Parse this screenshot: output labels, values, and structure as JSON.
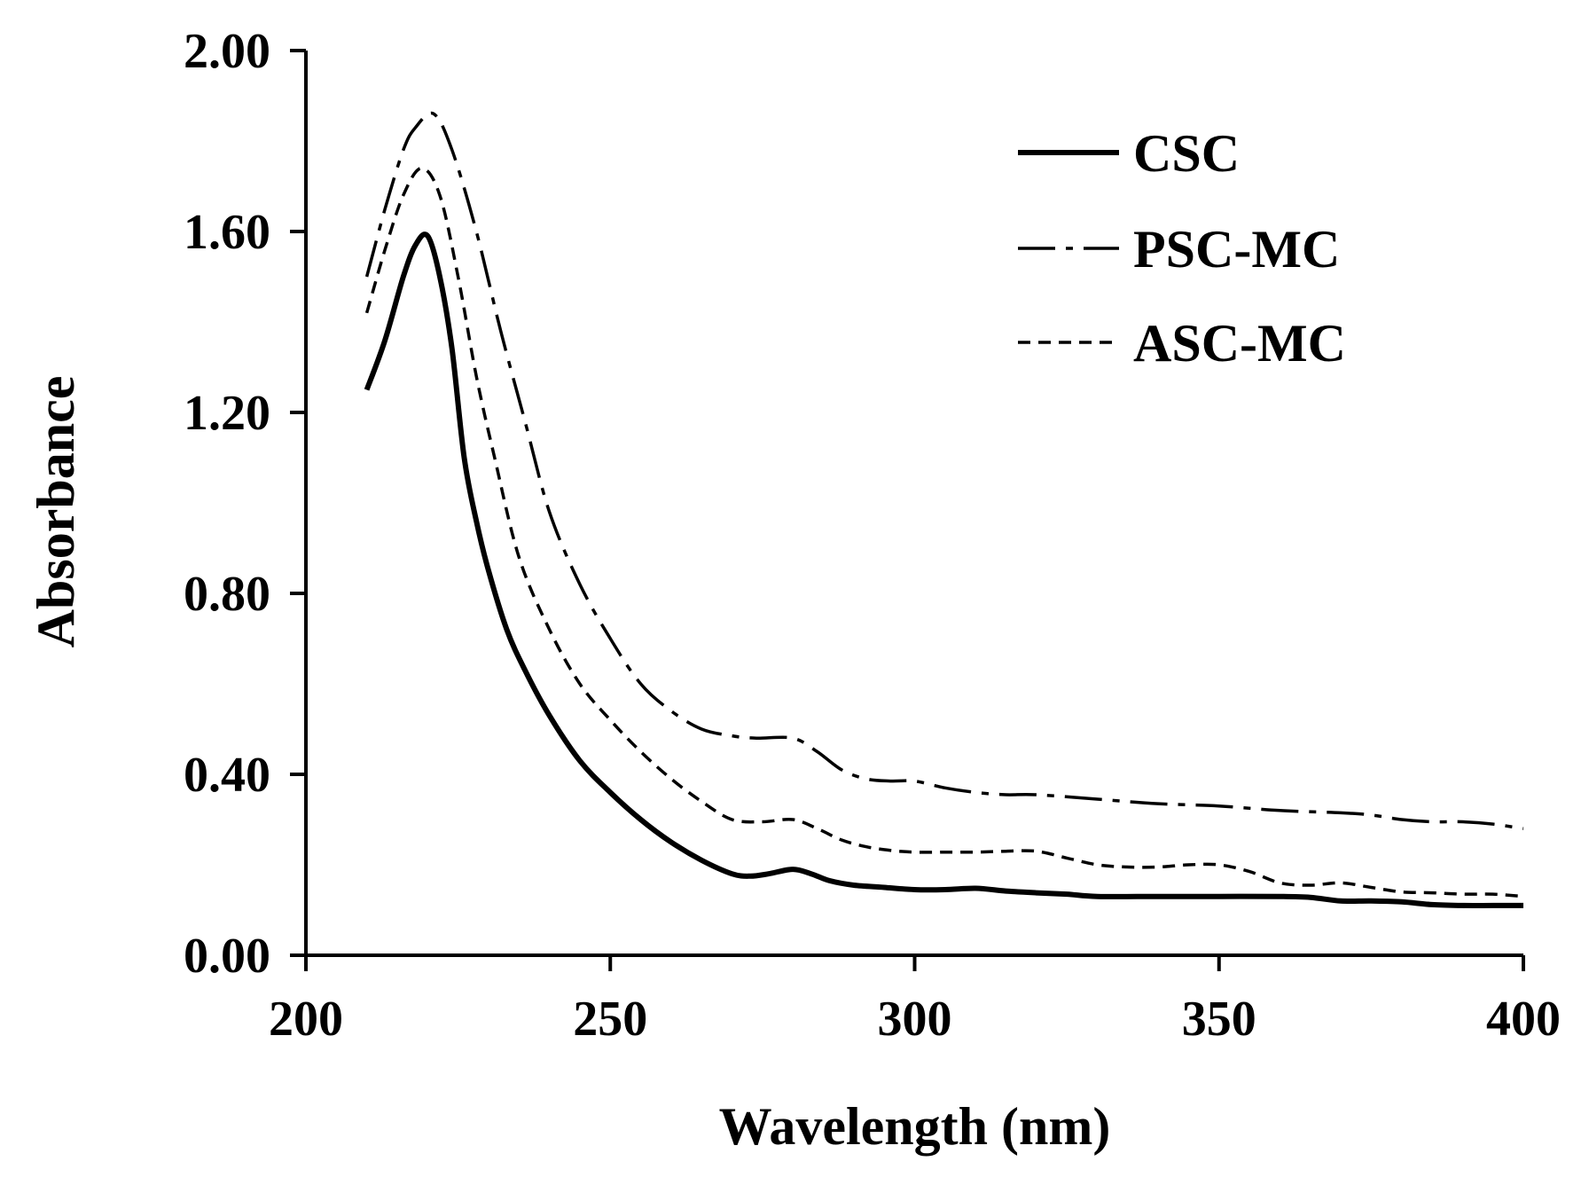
{
  "chart_data": {
    "type": "line",
    "title": "",
    "xlabel": "Wavelength (nm)",
    "ylabel": "Absorbance",
    "xlim": [
      200,
      400
    ],
    "ylim": [
      0.0,
      2.0
    ],
    "x_ticks": [
      200,
      250,
      300,
      350,
      400
    ],
    "x_tick_labels": [
      "200",
      "250",
      "300",
      "350",
      "400"
    ],
    "y_ticks": [
      0.0,
      0.4,
      0.8,
      1.2,
      1.6,
      2.0
    ],
    "y_tick_labels": [
      "0.00",
      "0.40",
      "0.80",
      "1.20",
      "1.60",
      "2.00"
    ],
    "grid": false,
    "legend_position": "top-right",
    "series": [
      {
        "name": "CSC",
        "style": "solid",
        "color": "#000000",
        "x": [
          210,
          213,
          216,
          218,
          220,
          222,
          224,
          226,
          228,
          230,
          233,
          236,
          240,
          245,
          250,
          255,
          260,
          265,
          270,
          273,
          276,
          280,
          283,
          286,
          290,
          295,
          300,
          305,
          310,
          315,
          320,
          325,
          330,
          340,
          350,
          360,
          365,
          370,
          375,
          380,
          385,
          390,
          395,
          400
        ],
        "y": [
          1.25,
          1.36,
          1.5,
          1.57,
          1.59,
          1.5,
          1.34,
          1.1,
          0.96,
          0.85,
          0.72,
          0.63,
          0.53,
          0.43,
          0.36,
          0.3,
          0.25,
          0.21,
          0.18,
          0.175,
          0.18,
          0.19,
          0.18,
          0.165,
          0.155,
          0.15,
          0.145,
          0.145,
          0.148,
          0.142,
          0.138,
          0.135,
          0.13,
          0.13,
          0.13,
          0.13,
          0.128,
          0.12,
          0.12,
          0.118,
          0.112,
          0.11,
          0.11,
          0.11
        ]
      },
      {
        "name": "PSC-MC",
        "style": "dashdot",
        "color": "#000000",
        "x": [
          210,
          213,
          216,
          218,
          221,
          224,
          228,
          232,
          236,
          240,
          245,
          250,
          255,
          260,
          265,
          270,
          274,
          280,
          284,
          288,
          292,
          296,
          300,
          305,
          310,
          315,
          320,
          330,
          340,
          350,
          360,
          370,
          375,
          380,
          385,
          390,
          395,
          400
        ],
        "y": [
          1.5,
          1.65,
          1.78,
          1.83,
          1.86,
          1.78,
          1.6,
          1.38,
          1.18,
          0.98,
          0.82,
          0.7,
          0.6,
          0.54,
          0.5,
          0.485,
          0.48,
          0.48,
          0.45,
          0.41,
          0.39,
          0.385,
          0.385,
          0.37,
          0.36,
          0.355,
          0.355,
          0.345,
          0.335,
          0.33,
          0.32,
          0.315,
          0.31,
          0.3,
          0.295,
          0.295,
          0.29,
          0.28
        ]
      },
      {
        "name": "ASC-MC",
        "style": "dashed",
        "color": "#000000",
        "x": [
          210,
          213,
          216,
          219,
          222,
          225,
          228,
          231,
          235,
          240,
          245,
          250,
          255,
          260,
          265,
          270,
          275,
          280,
          284,
          288,
          292,
          296,
          300,
          305,
          310,
          315,
          320,
          325,
          330,
          335,
          340,
          345,
          350,
          355,
          360,
          365,
          370,
          375,
          380,
          385,
          390,
          395,
          400
        ],
        "y": [
          1.42,
          1.56,
          1.68,
          1.74,
          1.68,
          1.5,
          1.28,
          1.1,
          0.88,
          0.72,
          0.6,
          0.52,
          0.45,
          0.39,
          0.34,
          0.3,
          0.295,
          0.3,
          0.28,
          0.255,
          0.24,
          0.232,
          0.228,
          0.228,
          0.228,
          0.23,
          0.23,
          0.215,
          0.2,
          0.195,
          0.195,
          0.2,
          0.2,
          0.185,
          0.16,
          0.155,
          0.16,
          0.15,
          0.14,
          0.138,
          0.135,
          0.135,
          0.13
        ]
      }
    ]
  }
}
